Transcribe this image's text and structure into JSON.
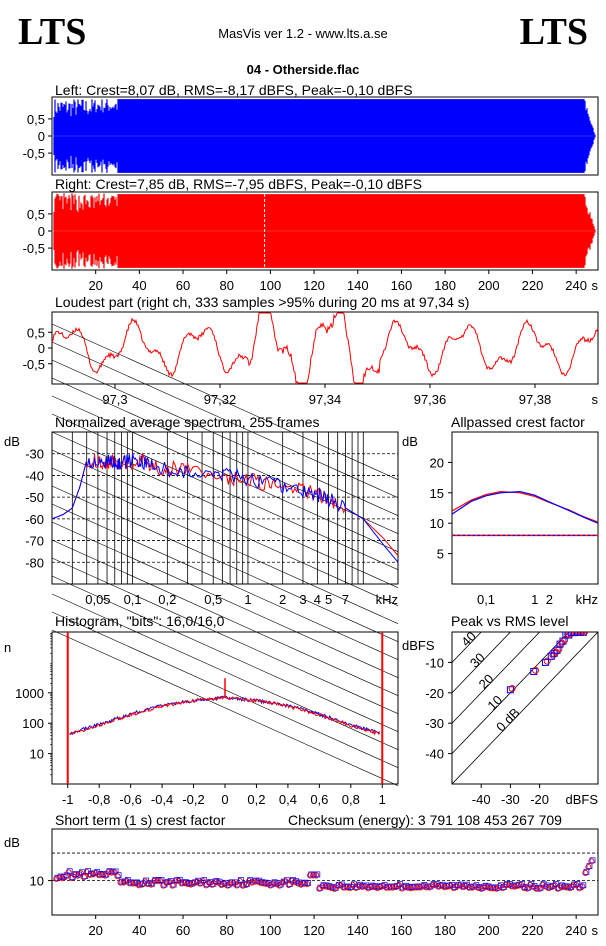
{
  "header": {
    "logo_left": "LTS",
    "logo_right": "LTS",
    "app_title": "MasVis ver 1.2 - www.lts.a.se",
    "file_name": "04 - Otherside.flac"
  },
  "colors": {
    "left": "#0000ff",
    "right": "#ff0000"
  },
  "chart_data": [
    {
      "type": "area",
      "title": "Left: Crest=8,07 dB, RMS=-8,17 dBFS, Peak=-0,10 dBFS",
      "y_ticks": [
        "0,5",
        "0",
        "-0,5"
      ],
      "ylim": [
        -1,
        1
      ],
      "xlim": [
        0,
        250
      ],
      "channel": "left"
    },
    {
      "type": "area",
      "title": "Right: Crest=7,85 dB, RMS=-7,95 dBFS, Peak=-0,10 dBFS",
      "y_ticks": [
        "0,5",
        "0",
        "-0,5"
      ],
      "x_ticks": [
        "20",
        "40",
        "60",
        "80",
        "100",
        "120",
        "140",
        "160",
        "180",
        "200",
        "220",
        "240"
      ],
      "x_unit": "s",
      "ylim": [
        -1,
        1
      ],
      "xlim": [
        0,
        250
      ],
      "marker_x": 97.34,
      "channel": "right"
    },
    {
      "type": "line",
      "title": "Loudest part (right ch, 333 samples >95% during 20 ms at 97,34 s)",
      "y_ticks": [
        "0,5",
        "0",
        "-0,5"
      ],
      "x_ticks": [
        "97,3",
        "97,32",
        "97,34",
        "97,36",
        "97,38"
      ],
      "x_unit": "s",
      "xlim": [
        97.288,
        97.392
      ],
      "ylim": [
        -1,
        1
      ]
    },
    {
      "type": "line",
      "title": "Normalized average spectrum, 255 frames",
      "ylabel": "dB",
      "y_ticks": [
        "-30",
        "-40",
        "-50",
        "-60",
        "-70",
        "-80"
      ],
      "x_ticks": [
        "0,05",
        "0,1",
        "0,2",
        "0,5",
        "1",
        "2",
        "3",
        "4",
        "5",
        "7"
      ],
      "x_unit": "kHz",
      "xscale": "log",
      "xlim": [
        0.02,
        20
      ],
      "ylim": [
        -90,
        -20
      ],
      "x": [
        0.02,
        0.025,
        0.03,
        0.035,
        0.04,
        0.05,
        0.06,
        0.07,
        0.08,
        0.1,
        0.12,
        0.15,
        0.2,
        0.3,
        0.5,
        0.7,
        1,
        1.5,
        2,
        3,
        4,
        5,
        7,
        10,
        15,
        20
      ],
      "series": [
        {
          "values": [
            -60,
            -58,
            -55,
            -45,
            -33,
            -33,
            -34,
            -33,
            -35,
            -34,
            -33,
            -36,
            -37,
            -37,
            -39,
            -41,
            -42,
            -44,
            -45,
            -47,
            -49,
            -51,
            -55,
            -60,
            -69,
            -77
          ]
        },
        {
          "values": [
            -60,
            -58,
            -55,
            -45,
            -33,
            -34,
            -33,
            -34,
            -34,
            -33,
            -34,
            -35,
            -37,
            -38,
            -39,
            -40,
            -42,
            -43,
            -45,
            -47,
            -49,
            -51,
            -55,
            -60,
            -72,
            -80
          ]
        }
      ]
    },
    {
      "type": "line",
      "title": "Allpassed crest factor",
      "ylabel": "dB",
      "y_ticks": [
        "20",
        "15",
        "10",
        "5"
      ],
      "x_ticks": [
        "0,1",
        "1",
        "2",
        "kHz"
      ],
      "xscale": "log",
      "xlim": [
        0.02,
        20
      ],
      "ylim": [
        0,
        25
      ],
      "reference_level": 8,
      "x": [
        0.02,
        0.05,
        0.1,
        0.2,
        0.5,
        1,
        2,
        5,
        10,
        20
      ],
      "series": [
        {
          "values": [
            12,
            13.8,
            14.7,
            15.2,
            15,
            14.4,
            13.4,
            12.2,
            11.1,
            10.2
          ]
        },
        {
          "values": [
            11.5,
            13.6,
            14.5,
            15,
            15.2,
            14.6,
            13.5,
            12.1,
            11,
            10
          ]
        }
      ]
    },
    {
      "type": "line",
      "title": "Histogram, \"bits\": 16,0/16,0",
      "ylabel": "n",
      "y_ticks": [
        "1000",
        "100",
        "10"
      ],
      "yscale": "log",
      "x_ticks": [
        "-1",
        "-0,8",
        "-0,6",
        "-0,4",
        "-0,2",
        "0",
        "0,2",
        "0,4",
        "0,6",
        "0,8",
        "1"
      ],
      "xlim": [
        -1.1,
        1.1
      ],
      "ylim": [
        1,
        100000
      ],
      "x": [
        -1,
        -0.8,
        -0.6,
        -0.4,
        -0.2,
        0,
        0.2,
        0.4,
        0.6,
        0.8,
        1
      ],
      "series": [
        {
          "values": [
            45,
            90,
            200,
            380,
            560,
            700,
            560,
            380,
            200,
            90,
            45
          ]
        },
        {
          "values": [
            42,
            85,
            190,
            370,
            550,
            690,
            550,
            370,
            190,
            85,
            42
          ]
        }
      ]
    },
    {
      "type": "scatter",
      "title": "Peak vs RMS level",
      "ylabel": "dBFS",
      "xlabel": "dBFS",
      "y_ticks": [
        "-10",
        "-20",
        "-30",
        "-40"
      ],
      "x_ticks": [
        "-40",
        "-30",
        "-20"
      ],
      "xlim": [
        -50,
        0
      ],
      "ylim": [
        -50,
        0
      ],
      "diagonal_labels": [
        "40",
        "30",
        "20",
        "10",
        "0 dB"
      ],
      "points": [
        [
          -30,
          -19
        ],
        [
          -22,
          -13
        ],
        [
          -18,
          -10
        ],
        [
          -16,
          -8
        ],
        [
          -15,
          -7
        ],
        [
          -14,
          -6
        ],
        [
          -13,
          -4
        ],
        [
          -12,
          -3
        ],
        [
          -11,
          -1
        ],
        [
          -10,
          -1
        ],
        [
          -9,
          -0.2
        ],
        [
          -8,
          -0.2
        ],
        [
          -7,
          -0.1
        ],
        [
          -6,
          -0.1
        ],
        [
          -5,
          -0.1
        ]
      ]
    },
    {
      "type": "scatter",
      "title": "Short term (1 s) crest factor",
      "annotation": "Checksum (energy):  3 791 108 453 267 709",
      "ylabel": "dB",
      "y_ticks": [
        "10"
      ],
      "x_ticks": [
        "20",
        "40",
        "60",
        "80",
        "100",
        "120",
        "140",
        "160",
        "180",
        "200",
        "220",
        "240"
      ],
      "x_unit": "s",
      "xlim": [
        0,
        250
      ],
      "ylim": [
        0,
        25
      ],
      "reference_levels": [
        10,
        18
      ]
    }
  ]
}
